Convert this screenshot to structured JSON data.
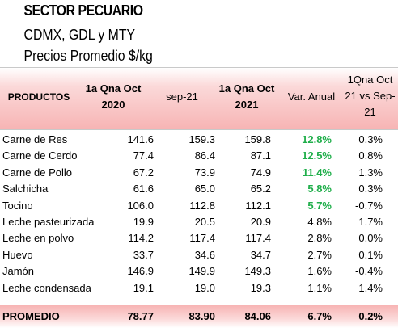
{
  "title": "SECTOR PECUARIO",
  "subtitle1": "CDMX, GDL y MTY",
  "subtitle2": "Precios Promedio $/kg",
  "headers": {
    "productos": "PRODUCTOS",
    "col1": "1a Qna Oct 2020",
    "col1_line1": "1a Qna Oct",
    "col1_line2": "2020",
    "col2": "sep-21",
    "col3_line1": "1a Qna Oct",
    "col3_line2": "2021",
    "col4": "Var. Anual",
    "col5_line1": "1Qna Oct",
    "col5_line2": "21 vs Sep-",
    "col5_line3": "21"
  },
  "rows": [
    {
      "product": "Carne de Res",
      "v2020": "141.6",
      "sep21": "159.3",
      "v2021": "159.8",
      "var": "12.8%",
      "vs": "0.3%",
      "highlight": true
    },
    {
      "product": "Carne de Cerdo",
      "v2020": "77.4",
      "sep21": "86.4",
      "v2021": "87.1",
      "var": "12.5%",
      "vs": "0.8%",
      "highlight": true
    },
    {
      "product": "Carne de Pollo",
      "v2020": "67.2",
      "sep21": "73.9",
      "v2021": "74.9",
      "var": "11.4%",
      "vs": "1.3%",
      "highlight": true
    },
    {
      "product": "Salchicha",
      "v2020": "61.6",
      "sep21": "65.0",
      "v2021": "65.2",
      "var": "5.8%",
      "vs": "0.3%",
      "highlight": true
    },
    {
      "product": "Tocino",
      "v2020": "106.0",
      "sep21": "112.8",
      "v2021": "112.1",
      "var": "5.7%",
      "vs": "-0.7%",
      "highlight": true
    },
    {
      "product": "Leche pasteurizada",
      "v2020": "19.9",
      "sep21": "20.5",
      "v2021": "20.9",
      "var": "4.8%",
      "vs": "1.7%",
      "highlight": false
    },
    {
      "product": "Leche en polvo",
      "v2020": "114.2",
      "sep21": "117.4",
      "v2021": "117.4",
      "var": "2.8%",
      "vs": "0.0%",
      "highlight": false
    },
    {
      "product": "Huevo",
      "v2020": "33.7",
      "sep21": "34.6",
      "v2021": "34.7",
      "var": "2.7%",
      "vs": "0.1%",
      "highlight": false
    },
    {
      "product": "Jamón",
      "v2020": "146.9",
      "sep21": "149.9",
      "v2021": "149.3",
      "var": "1.6%",
      "vs": "-0.4%",
      "highlight": false
    },
    {
      "product": "Leche condensada",
      "v2020": "19.1",
      "sep21": "19.0",
      "v2021": "19.3",
      "var": "1.1%",
      "vs": "1.4%",
      "highlight": false
    }
  ],
  "footer": {
    "label": "PROMEDIO",
    "v2020": "78.77",
    "sep21": "83.90",
    "v2021": "84.06",
    "var": "6.7%",
    "vs": "0.2%"
  },
  "colors": {
    "header_fill": "#f7b4b4",
    "highlight_green": "#1fae4a"
  }
}
